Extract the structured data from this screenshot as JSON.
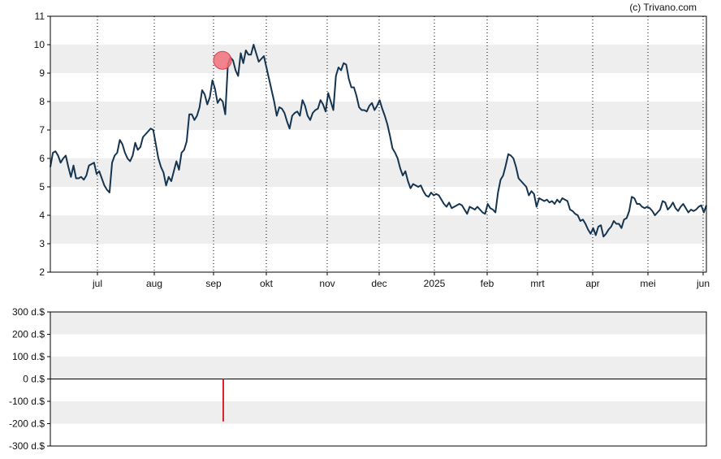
{
  "credit": "(c) Trivano.com",
  "colors": {
    "price_line": "#14344f",
    "marker_fill": "#f0707a",
    "marker_stroke": "#d9404f",
    "volume_bar": "#e0202e",
    "band": "#eeeeee",
    "axis": "#000000"
  },
  "chart_data": [
    {
      "type": "line",
      "title": "",
      "xlabel": "",
      "ylabel": "",
      "ylim": [
        2,
        11
      ],
      "yticks": [
        "2",
        "3",
        "4",
        "5",
        "6",
        "7",
        "8",
        "9",
        "10",
        "11"
      ],
      "xticks": [
        "jul",
        "aug",
        "sep",
        "okt",
        "nov",
        "dec",
        "2025",
        "feb",
        "mrt",
        "apr",
        "mei",
        "jun"
      ],
      "grid": "dotted vertical lines at month ticks, alternating horizontal bands",
      "marker": {
        "x": "sep",
        "y": 9.45,
        "shape": "circle"
      },
      "series": [
        {
          "values": [
            5.7,
            6.2,
            6.25,
            6.1,
            5.85,
            6.0,
            6.1,
            5.7,
            5.35,
            5.75,
            5.3,
            5.3,
            5.35,
            5.25,
            5.4,
            5.75,
            5.8,
            5.85,
            5.45,
            5.55,
            5.3,
            5.05,
            4.9,
            4.8,
            5.85,
            6.1,
            6.2,
            6.65,
            6.5,
            6.2,
            6.0,
            5.9,
            6.1,
            6.55,
            6.3,
            6.4,
            6.75,
            6.85,
            6.95,
            7.05,
            7.0,
            6.5,
            6.0,
            5.7,
            5.5,
            5.05,
            5.35,
            5.2,
            5.55,
            5.9,
            5.6,
            6.2,
            6.3,
            6.6,
            7.55,
            7.55,
            7.35,
            7.5,
            7.8,
            8.4,
            8.25,
            7.9,
            8.15,
            8.75,
            8.45,
            7.95,
            8.1,
            8.0,
            7.55,
            9.3,
            9.55,
            9.45,
            9.1,
            8.9,
            9.7,
            9.35,
            9.8,
            9.65,
            9.65,
            10.0,
            9.7,
            9.4,
            9.5,
            9.6,
            9.2,
            8.8,
            8.4,
            8.0,
            7.5,
            7.8,
            7.75,
            7.6,
            7.3,
            7.05,
            7.5,
            7.6,
            7.65,
            7.5,
            8.05,
            7.85,
            7.5,
            7.35,
            7.6,
            7.7,
            7.75,
            8.05,
            7.9,
            7.65,
            8.3,
            8.0,
            7.7,
            8.9,
            9.2,
            9.1,
            9.35,
            9.3,
            8.8,
            8.5,
            8.5,
            8.2,
            7.8,
            7.7,
            7.7,
            7.65,
            7.85,
            7.95,
            7.7,
            7.85,
            8.05,
            7.75,
            7.5,
            7.2,
            6.8,
            6.35,
            6.2,
            6.0,
            5.65,
            5.4,
            5.55,
            5.2,
            4.95,
            5.1,
            5.05,
            5.0,
            5.05,
            4.85,
            4.7,
            4.65,
            4.8,
            4.7,
            4.75,
            4.7,
            4.55,
            4.4,
            4.3,
            4.45,
            4.25,
            4.3,
            4.35,
            4.4,
            4.35,
            4.2,
            4.05,
            4.3,
            4.25,
            4.2,
            4.3,
            4.2,
            4.1,
            4.05,
            4.4,
            4.25,
            4.2,
            4.1,
            4.8,
            5.25,
            5.4,
            5.75,
            6.15,
            6.1,
            6.0,
            5.7,
            5.3,
            5.2,
            5.1,
            5.0,
            4.7,
            4.85,
            4.75,
            4.3,
            4.6,
            4.55,
            4.5,
            4.55,
            4.45,
            4.5,
            4.4,
            4.55,
            4.45,
            4.6,
            4.55,
            4.5,
            4.2,
            4.15,
            4.05,
            4.0,
            3.8,
            3.85,
            3.7,
            3.5,
            3.35,
            3.55,
            3.3,
            3.6,
            3.65,
            3.25,
            3.35,
            3.5,
            3.6,
            3.8,
            3.7,
            3.7,
            3.55,
            3.85,
            3.9,
            4.15,
            4.65,
            4.6,
            4.4,
            4.4,
            4.3,
            4.25,
            4.3,
            4.25,
            4.15,
            4.0,
            4.1,
            4.2,
            4.5,
            4.45,
            4.2,
            4.3,
            4.45,
            4.25,
            4.15,
            4.3,
            4.4,
            4.25,
            4.1,
            4.2,
            4.15,
            4.2,
            4.3,
            4.35,
            4.1,
            4.35
          ]
        }
      ]
    },
    {
      "type": "bar",
      "title": "",
      "xlabel": "",
      "ylabel": "",
      "ylim": [
        -300,
        300
      ],
      "yticks": [
        "300 d.$",
        "200 d.$",
        "100 d.$",
        "0 d.$",
        "-100 d.$",
        "-200 d.$",
        "-300 d.$"
      ],
      "grid": "alternating horizontal bands",
      "categories": [
        "sep"
      ],
      "values": [
        -190
      ]
    }
  ]
}
